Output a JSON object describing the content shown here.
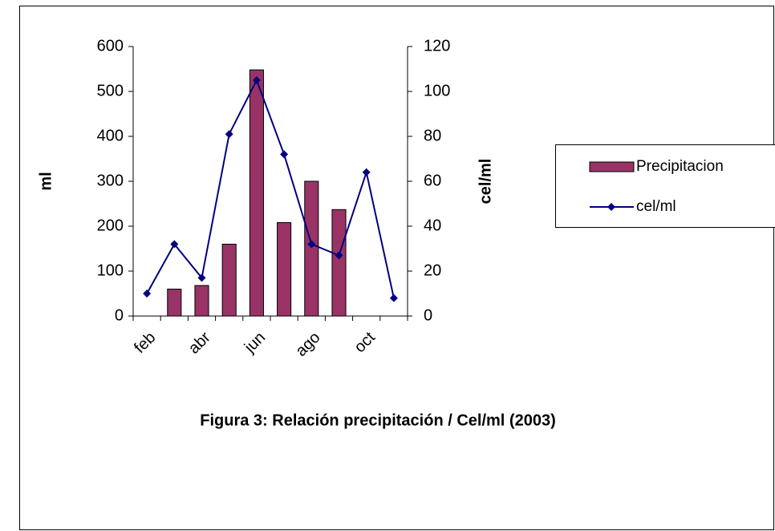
{
  "chart_data": {
    "type": "combo",
    "title": "Figura 3: Relación precipitación / Cel/ml  (2003)",
    "y_label": "ml",
    "y2_label": "cel/ml",
    "categories": [
      "feb",
      null,
      "abr",
      null,
      "jun",
      null,
      "ago",
      null,
      "oct",
      null
    ],
    "series": [
      {
        "name": "Precipitacion",
        "type": "bar",
        "color": "#993366",
        "axis": "y",
        "values": [
          0,
          60,
          68,
          160,
          548,
          208,
          300,
          237,
          0,
          0
        ]
      },
      {
        "name": "cel/ml",
        "type": "line",
        "color": "#000080",
        "axis": "y2",
        "values": [
          10,
          32,
          17,
          81,
          105,
          72,
          32,
          27,
          64,
          8
        ]
      }
    ],
    "ylim": [
      0,
      600
    ],
    "yticks": [
      0,
      100,
      200,
      300,
      400,
      500,
      600
    ],
    "y2lim": [
      0,
      120
    ],
    "y2ticks": [
      0,
      20,
      40,
      60,
      80,
      100,
      120
    ],
    "grid": false,
    "legend": "right"
  }
}
